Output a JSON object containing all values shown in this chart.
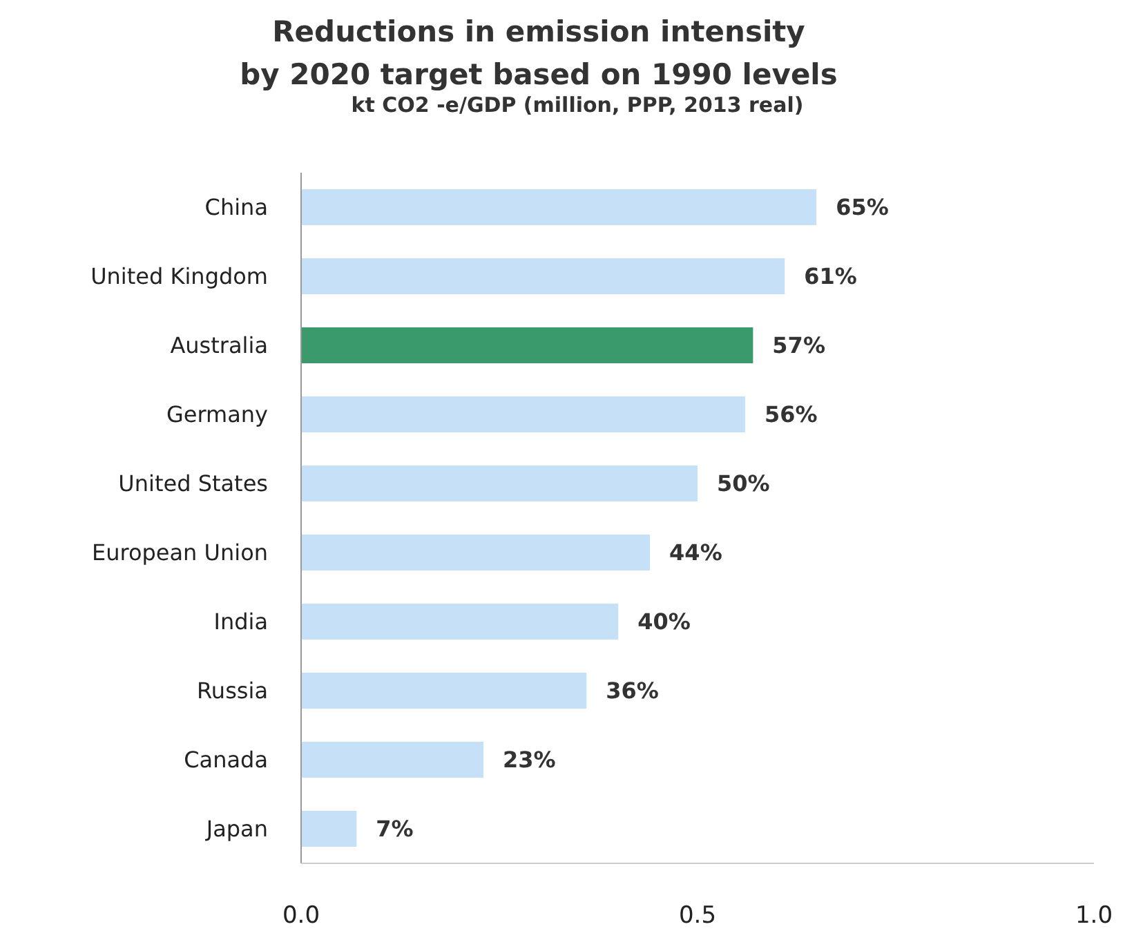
{
  "chart_data": {
    "type": "bar",
    "orientation": "horizontal",
    "title": "Reductions in emission intensity\nby 2020 target based on 1990 levels",
    "subtitle": "kt CO2 -e/GDP (million, PPP, 2013 real)",
    "categories": [
      "China",
      "United Kingdom",
      "Australia",
      "Germany",
      "United States",
      "European Union",
      "India",
      "Russia",
      "Canada",
      "Japan"
    ],
    "values": [
      0.65,
      0.61,
      0.57,
      0.56,
      0.5,
      0.44,
      0.4,
      0.36,
      0.23,
      0.07
    ],
    "colors": [
      "#c6e0f7",
      "#c6e0f7",
      "#3b9a6c",
      "#c6e0f7",
      "#c6e0f7",
      "#c6e0f7",
      "#c6e0f7",
      "#c6e0f7",
      "#c6e0f7",
      "#c6e0f7"
    ],
    "value_labels": [
      "65%",
      "61%",
      "57%",
      "56%",
      "50%",
      "44%",
      "40%",
      "36%",
      "23%",
      "7%"
    ],
    "xlim": [
      0,
      1
    ],
    "xticks": [
      {
        "value": 0,
        "label": "0.0"
      },
      {
        "value": 0.5,
        "label": "0.5"
      },
      {
        "value": 1,
        "label": "1.0"
      }
    ],
    "grid": false
  }
}
